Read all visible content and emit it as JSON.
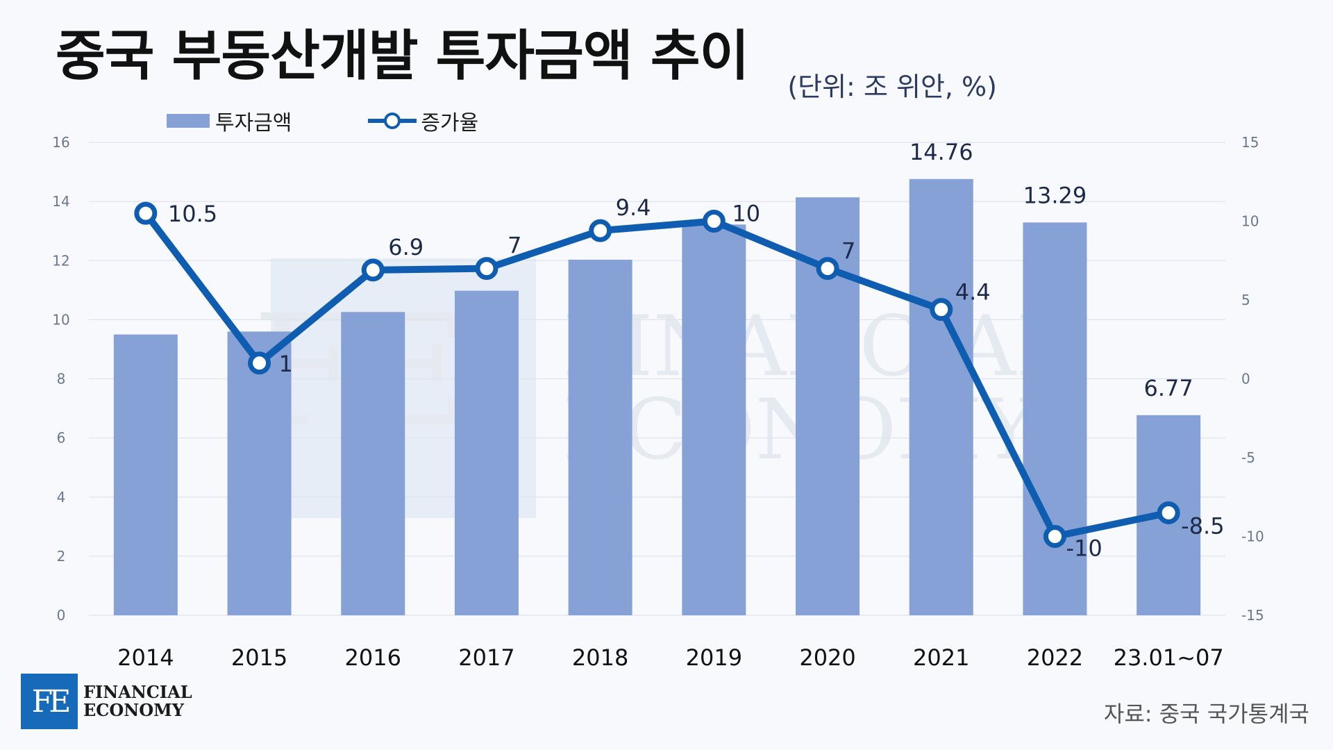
{
  "title": "중국 부동산개발 투자금액 추이",
  "unit_label": "(단위: 조 위안, %)",
  "source": "자료: 중국 국가통계국",
  "logo": {
    "mark": "FE",
    "line1": "FINANCIAL",
    "line2": "ECONOMY"
  },
  "watermark": {
    "line1": "FINANCIAL",
    "line2": "ECONOMY"
  },
  "colors": {
    "bar": "#86a1d6",
    "line": "#0f5db0",
    "text_dark": "#1c2a48",
    "grid": "#dfe3ea",
    "axis_text": "#6b7690"
  },
  "chart_data": {
    "type": "bar",
    "categories": [
      "2014",
      "2015",
      "2016",
      "2017",
      "2018",
      "2019",
      "2020",
      "2021",
      "2022",
      "23.01~07"
    ],
    "series": [
      {
        "name": "투자금액",
        "type": "bar",
        "axis": "left",
        "values": [
          9.5,
          9.6,
          10.26,
          10.98,
          12.03,
          13.22,
          14.14,
          14.76,
          13.29,
          6.77
        ],
        "labels": [
          "",
          "",
          "",
          "",
          "",
          "",
          "",
          "14.76",
          "13.29",
          "6.77"
        ]
      },
      {
        "name": "증가율",
        "type": "line",
        "axis": "right",
        "values": [
          10.5,
          1,
          6.9,
          7,
          9.4,
          10,
          7,
          4.4,
          -10,
          -8.5
        ],
        "labels": [
          "10.5",
          "1",
          "6.9",
          "7",
          "9.4",
          "10",
          "7",
          "4.4",
          "-10",
          "-8.5"
        ]
      }
    ],
    "y_left": {
      "min": 0,
      "max": 16,
      "ticks": [
        "0",
        "2",
        "4",
        "6",
        "8",
        "10",
        "12",
        "14",
        "16"
      ]
    },
    "y_right": {
      "min": -15,
      "max": 15,
      "ticks": [
        "-15",
        "-10",
        "-5",
        "0",
        "5",
        "10",
        "15"
      ]
    },
    "grid": true,
    "legend_position": "top-left"
  }
}
